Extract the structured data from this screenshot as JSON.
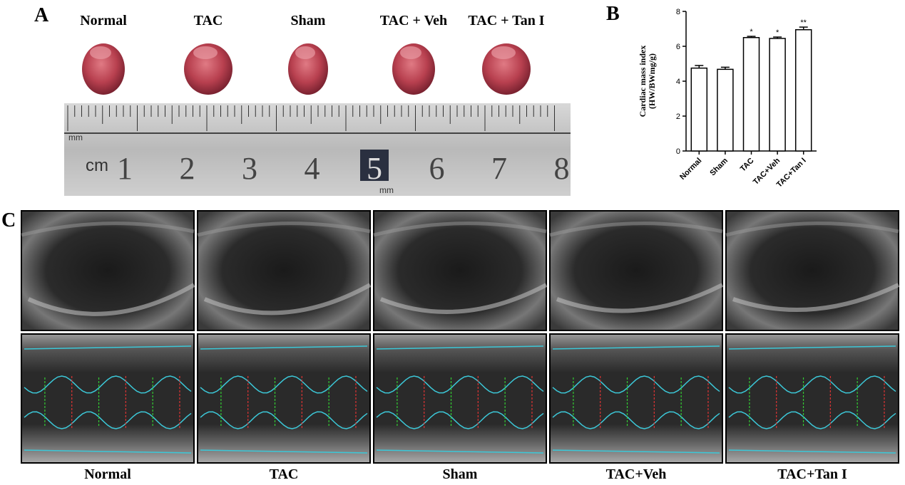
{
  "panel_a": {
    "label": "A",
    "groups": [
      "Normal",
      "TAC",
      "Sham",
      "TAC + Veh",
      "TAC + Tan I"
    ],
    "ruler": {
      "unit_mm": "mm",
      "unit_cm": "cm",
      "numbers": [
        "1",
        "2",
        "3",
        "4",
        "5",
        "6",
        "7",
        "8"
      ],
      "unit_mm_2": "mm"
    }
  },
  "panel_b": {
    "label": "B"
  },
  "chart_data": {
    "type": "bar",
    "ylabel": [
      "Cardiac mass index",
      "(HW/BWmg/g)"
    ],
    "categories": [
      "Normal",
      "Sham",
      "TAC",
      "TAC+Veh",
      "TAC+Tan I"
    ],
    "values": [
      4.75,
      4.68,
      6.5,
      6.45,
      6.95
    ],
    "errors": [
      0.15,
      0.12,
      0.07,
      0.08,
      0.15
    ],
    "annotations": [
      null,
      null,
      "*",
      "*",
      "**"
    ],
    "color": "#ffffff",
    "ylim": [
      0,
      8
    ],
    "yticks": [
      0,
      2,
      4,
      6,
      8
    ]
  },
  "panel_c": {
    "label": "C",
    "groups": [
      "Normal",
      "TAC",
      "Sham",
      "TAC+Veh",
      "TAC+Tan I"
    ]
  }
}
